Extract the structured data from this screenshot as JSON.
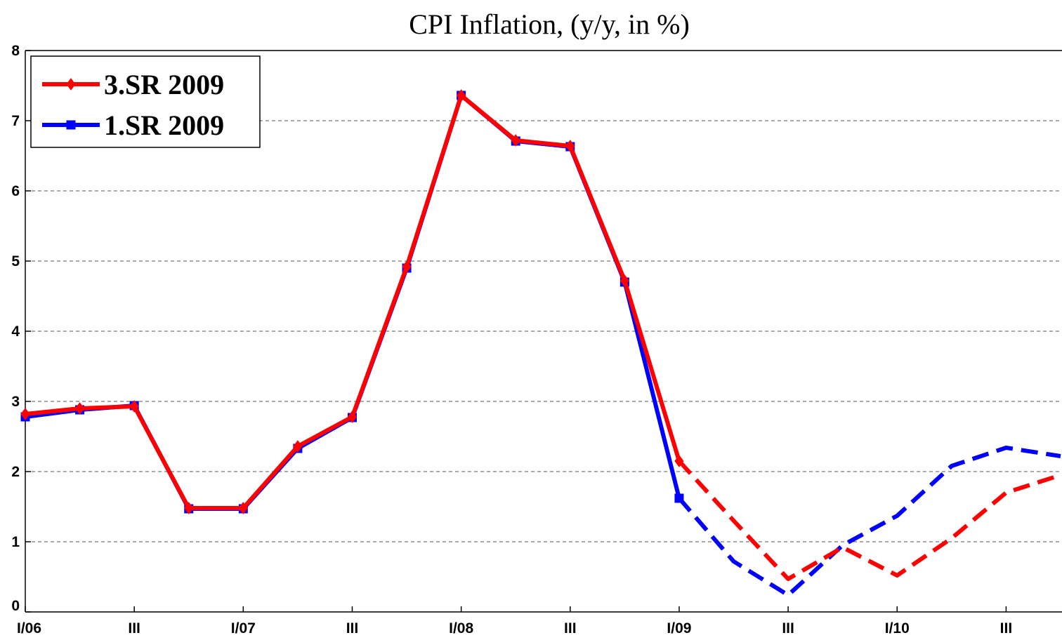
{
  "chart_data": {
    "type": "line",
    "title": "CPI Inflation, (y/y, in %)",
    "categories": [
      "I/06",
      null,
      "III",
      null,
      "I/07",
      null,
      "III",
      null,
      "I/08",
      null,
      "III",
      null,
      "I/09",
      null,
      "III",
      null,
      "I/10",
      null,
      "III",
      null
    ],
    "series": [
      {
        "name": "3.SR 2009",
        "color": "#ff0000",
        "marker": "diamond",
        "dashed_from": 12,
        "values": [
          2.82,
          2.9,
          2.93,
          1.48,
          1.48,
          2.36,
          2.78,
          4.92,
          7.36,
          6.72,
          6.64,
          4.72,
          2.15,
          1.3,
          0.47,
          0.92,
          0.52,
          1.05,
          1.7,
          1.95
        ]
      },
      {
        "name": "1.SR 2009",
        "color": "#0000ff",
        "marker": "square",
        "dashed_from": 12,
        "values": [
          2.78,
          2.88,
          2.94,
          1.47,
          1.47,
          2.33,
          2.77,
          4.9,
          7.36,
          6.71,
          6.63,
          4.7,
          1.62,
          0.72,
          0.24,
          0.95,
          1.37,
          2.08,
          2.34,
          2.22
        ]
      }
    ],
    "ylim": [
      0,
      8
    ],
    "yticks": [
      0,
      1,
      2,
      3,
      4,
      5,
      6,
      7,
      8
    ],
    "grid": true,
    "legend": "top-left"
  }
}
